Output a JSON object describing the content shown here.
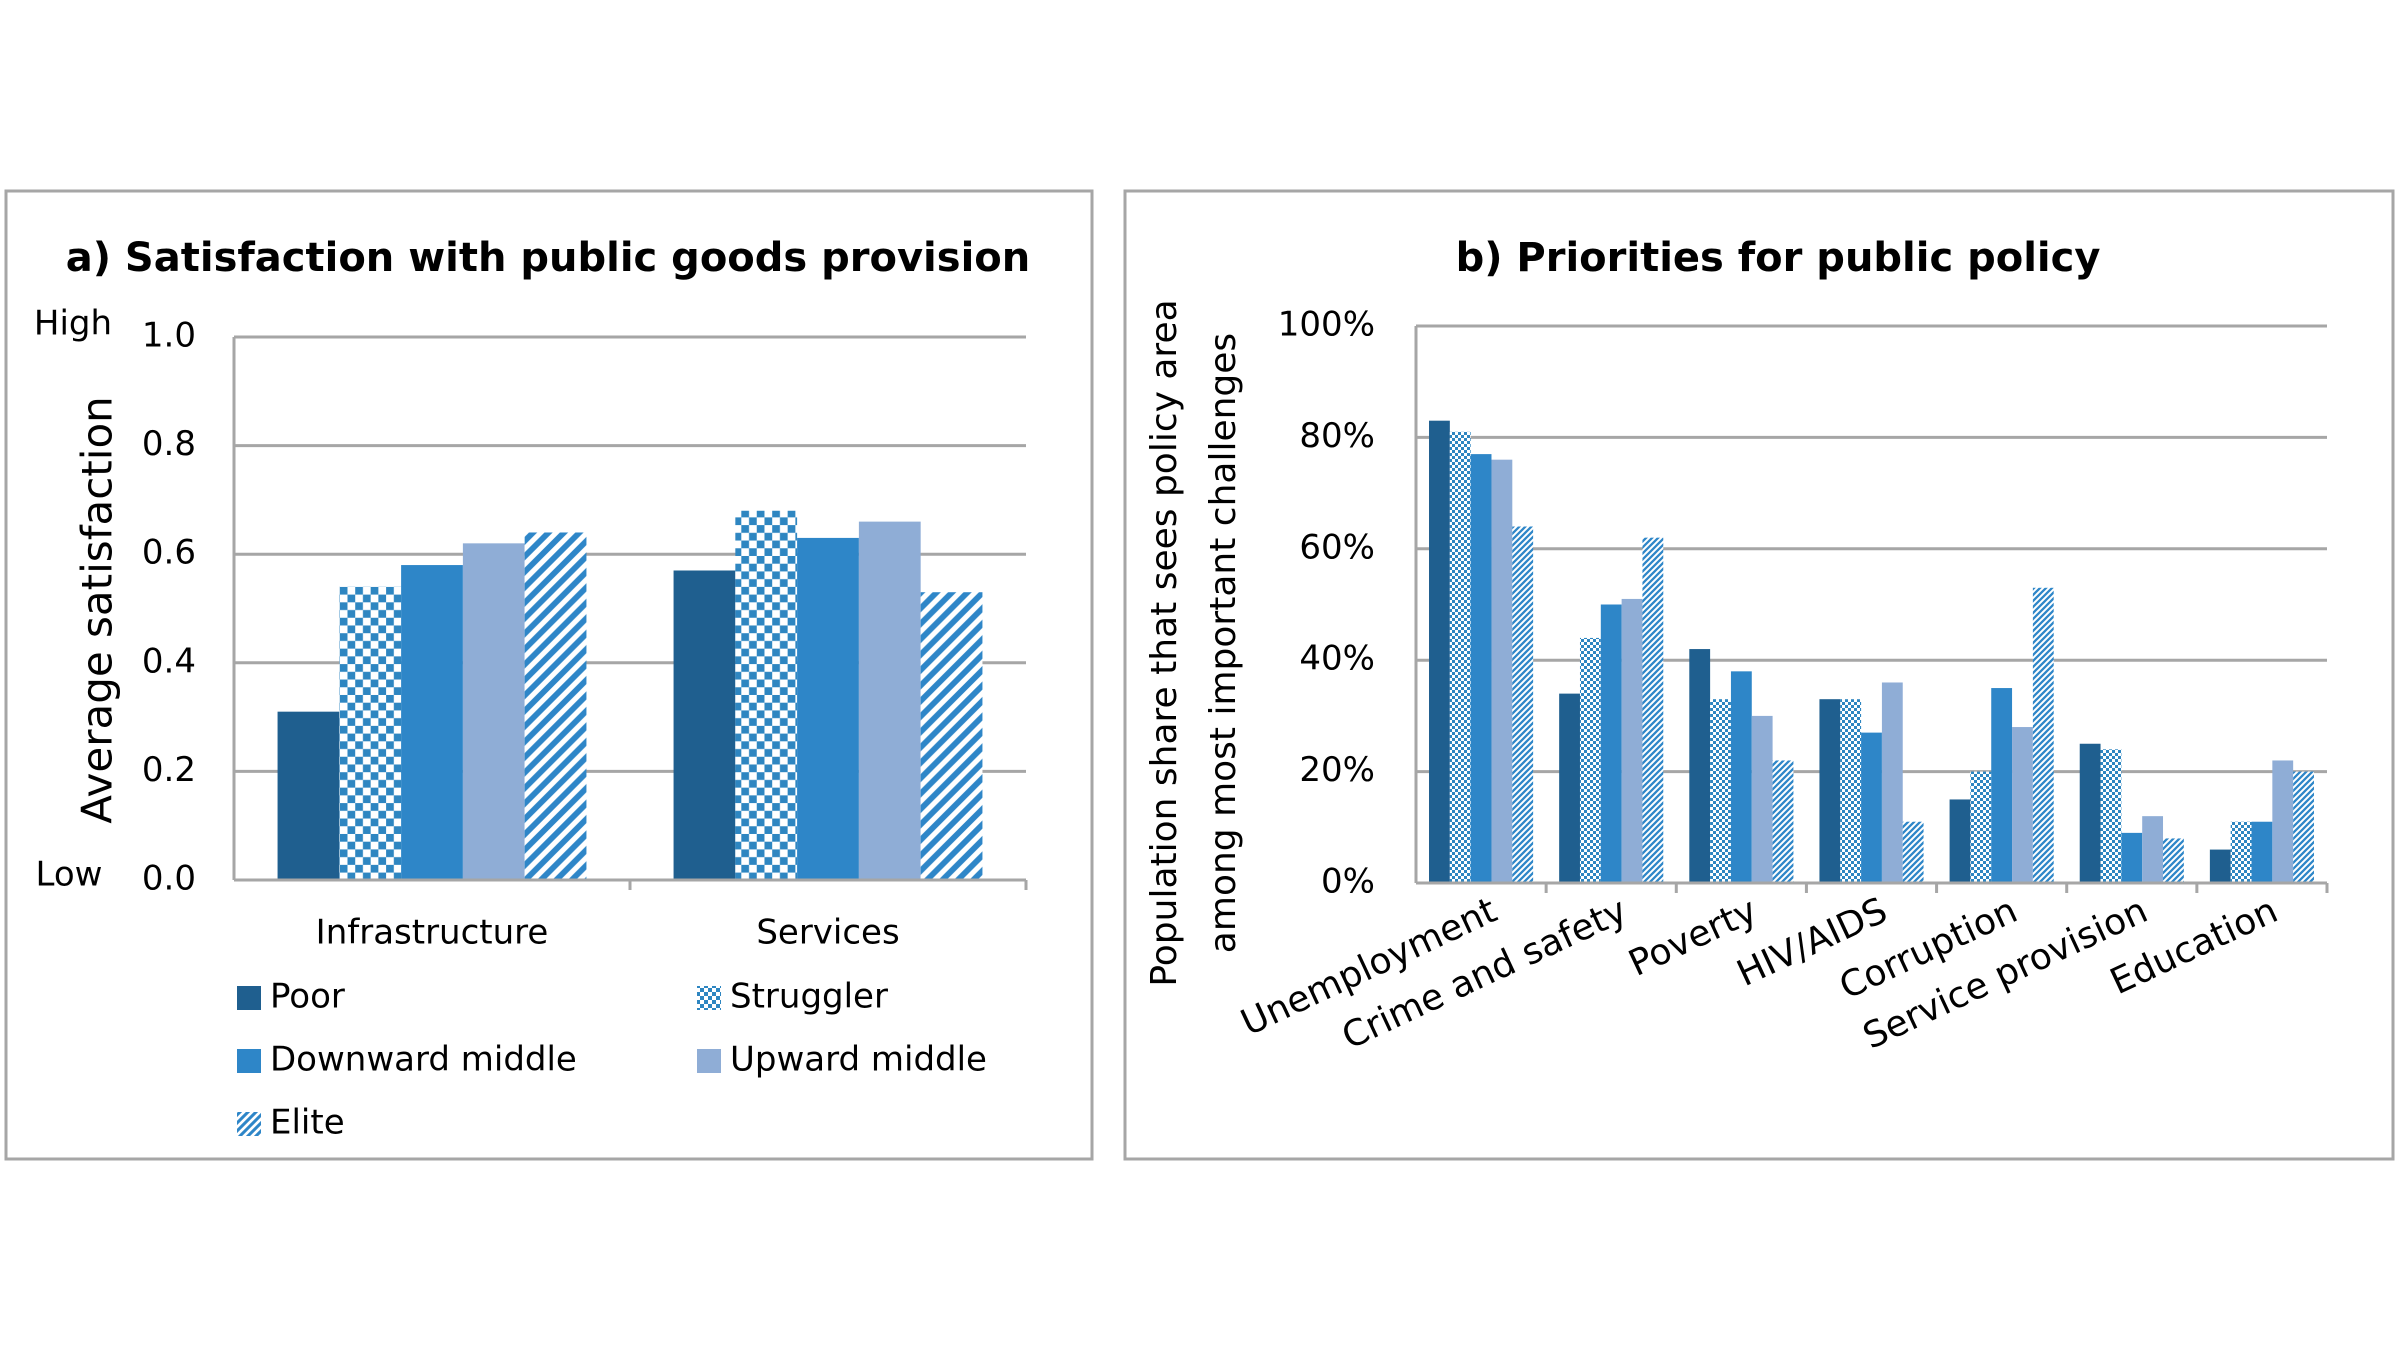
{
  "chart_data": [
    {
      "type": "bar",
      "title": "a) Satisfaction with public goods provision",
      "ylabel": [
        "Average satisfaction"
      ],
      "annotations": [
        "High",
        "Low"
      ],
      "categories": [
        "Infrastructure",
        "Services"
      ],
      "series": [
        {
          "name": "Poor",
          "color": "#1f5f8f",
          "pattern": "solid",
          "values": [
            0.31,
            0.57
          ]
        },
        {
          "name": "Struggler",
          "color": "#2e86c1",
          "pattern": "checker",
          "values": [
            0.54,
            0.68
          ]
        },
        {
          "name": "Downward middle",
          "color": "#2e86c8",
          "pattern": "solid",
          "values": [
            0.58,
            0.63
          ]
        },
        {
          "name": "Upward middle",
          "color": "#8fadd6",
          "pattern": "solid",
          "values": [
            0.62,
            0.66
          ]
        },
        {
          "name": "Elite",
          "color": "#2e86c8",
          "pattern": "diagonal",
          "values": [
            0.64,
            0.53
          ]
        }
      ],
      "ylim": [
        0,
        1
      ],
      "yticks": [
        {
          "value": 0,
          "label": "0.0"
        },
        0.2,
        0.4,
        0.6,
        0.8,
        {
          "value": 1,
          "label": "1.0"
        }
      ],
      "grid": true,
      "legend": "bottom"
    },
    {
      "type": "bar",
      "title": "b) Priorities for public policy",
      "ylabel": [
        "Population  share that sees policy area",
        "among most important challenges"
      ],
      "categories": [
        "Unemployment",
        "Crime and safety",
        "Poverty",
        "HIV/AIDS",
        "Corruption",
        "Service provision",
        "Education"
      ],
      "series": [
        {
          "color": "#1f5f8f",
          "pattern": "solid",
          "values": [
            83,
            34,
            42,
            33,
            15,
            25,
            6
          ]
        },
        {
          "color": "#2e86c1",
          "pattern": "checker",
          "values": [
            81,
            44,
            33,
            33,
            20,
            24,
            11
          ]
        },
        {
          "color": "#2e86c8",
          "pattern": "solid",
          "values": [
            77,
            50,
            38,
            27,
            35,
            9,
            11
          ]
        },
        {
          "color": "#8fadd6",
          "pattern": "solid",
          "values": [
            76,
            51,
            30,
            36,
            28,
            12,
            22
          ]
        },
        {
          "color": "#2e86c8",
          "pattern": "diagonal",
          "values": [
            64,
            62,
            22,
            11,
            53,
            8,
            20
          ]
        }
      ],
      "ylim": [
        0,
        100
      ],
      "yticks": [
        {
          "value": 0,
          "label": "0%"
        },
        {
          "value": 20,
          "label": "20%"
        },
        {
          "value": 40,
          "label": "40%"
        },
        {
          "value": 60,
          "label": "60%"
        },
        {
          "value": 80,
          "label": "80%"
        },
        {
          "value": 100,
          "label": "100%"
        }
      ],
      "grid": true,
      "xlabel_rotation": -25
    }
  ]
}
